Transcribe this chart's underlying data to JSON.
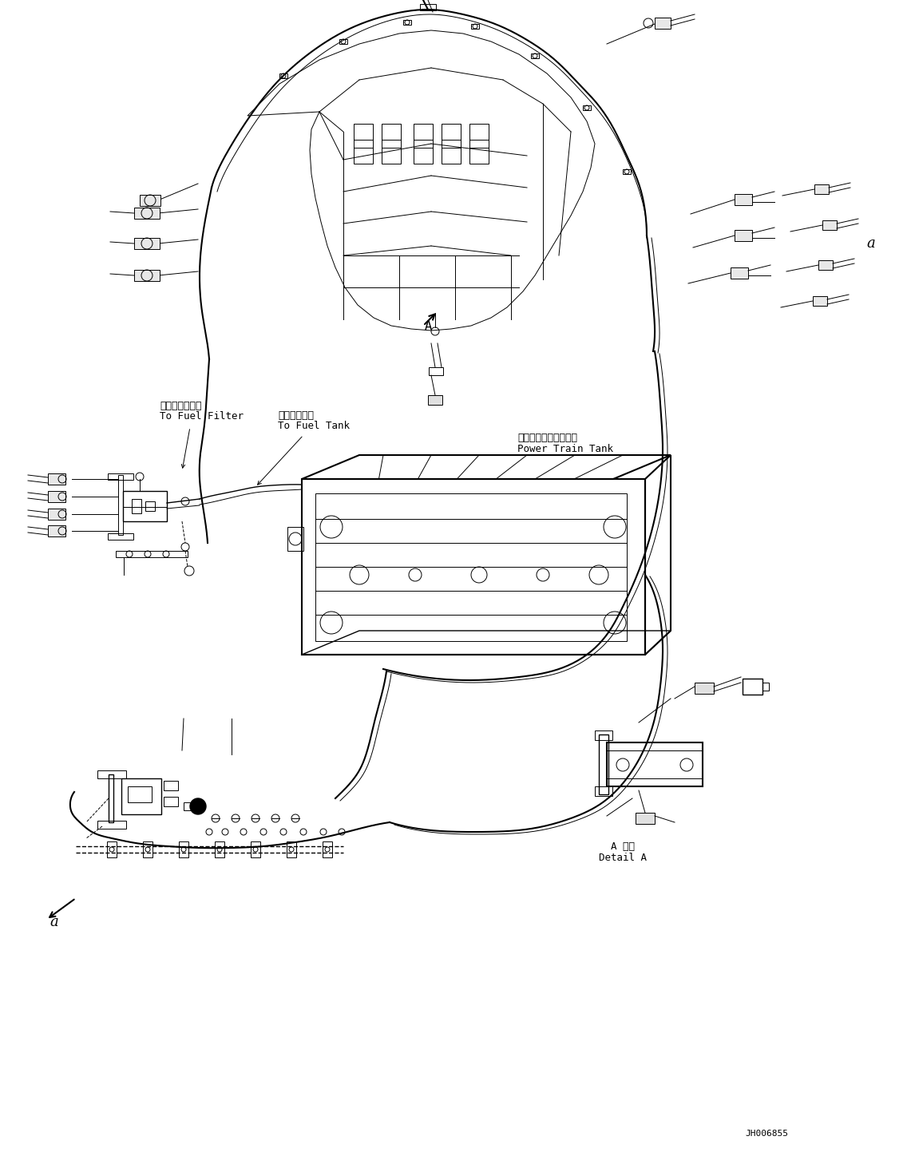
{
  "bg_color": "#ffffff",
  "line_color": "#000000",
  "fig_width": 11.41,
  "fig_height": 14.58,
  "dpi": 100,
  "labels": {
    "fuel_filter_jp": "燃料フィルタへ",
    "fuel_filter_en": "To Fuel Filter",
    "fuel_tank_jp": "燃料タンクへ",
    "fuel_tank_en": "To Fuel Tank",
    "power_train_jp": "パワートレインタンク",
    "power_train_en": "Power Train Tank",
    "detail_jp": "A 詳細",
    "detail_en": "Detail A",
    "label_a_top": "a",
    "label_a_bottom": "a",
    "drawing_no": "JH006855"
  },
  "font_sizes": {
    "label": 9,
    "a_marker": 13,
    "detail": 9,
    "drawing_no": 8
  }
}
